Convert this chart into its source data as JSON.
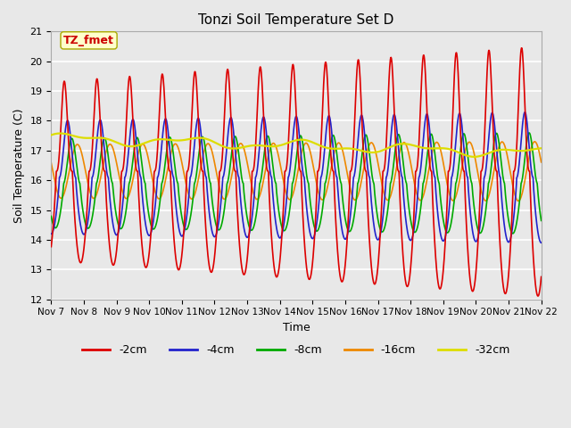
{
  "title": "Tonzi Soil Temperature Set D",
  "xlabel": "Time",
  "ylabel": "Soil Temperature (C)",
  "ylim": [
    12.0,
    21.0
  ],
  "yticks": [
    12.0,
    13.0,
    14.0,
    15.0,
    16.0,
    17.0,
    18.0,
    19.0,
    20.0,
    21.0
  ],
  "plot_bg_color": "#e8e8e8",
  "grid_color": "#ffffff",
  "annotation_text": "TZ_fmet",
  "annotation_color": "#cc0000",
  "annotation_bg": "#ffffcc",
  "annotation_border": "#aaaa00",
  "series": {
    "-2cm": {
      "color": "#dd0000"
    },
    "-4cm": {
      "color": "#2222cc"
    },
    "-8cm": {
      "color": "#00aa00"
    },
    "-16cm": {
      "color": "#ee8800"
    },
    "-32cm": {
      "color": "#dddd00"
    }
  },
  "xtick_labels": [
    "Nov 7",
    "Nov 8",
    "Nov 9",
    "Nov 10",
    "Nov 11",
    "Nov 12",
    "Nov 13",
    "Nov 14",
    "Nov 15",
    "Nov 16",
    "Nov 17",
    "Nov 18",
    "Nov 19",
    "Nov 20",
    "Nov 21",
    "Nov 22"
  ],
  "num_days": 15,
  "points_per_day": 96
}
